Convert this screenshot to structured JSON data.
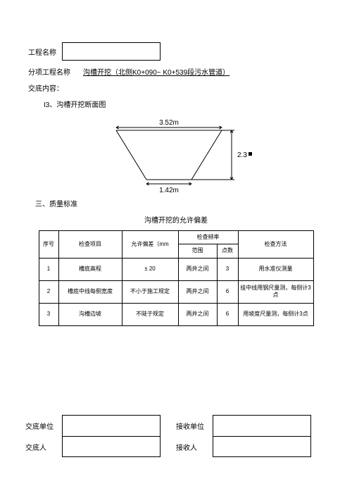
{
  "header": {
    "project_label": "工程名称",
    "sub_project_label": "分项工程名称",
    "sub_project_value": "沟槽开挖（北侧K0+090~ K0+539段污水管道）",
    "content_label": "交底内容：",
    "section_label": "I3、沟槽开挖断面图"
  },
  "diagram": {
    "top_width_label": "3.52m",
    "bottom_width_label": "1.42m",
    "height_label": "2.3",
    "height_unit": "m",
    "top_width": 150,
    "bottom_width": 64,
    "depth": 70,
    "stroke": "#000000",
    "stroke_width": 1,
    "font_size": 10
  },
  "quality": {
    "section_label": "三、质量标准",
    "table_title": "沟槽开挖的允许偏差",
    "columns": {
      "no": "序号",
      "item": "检查项目",
      "tol": "允许偏差（mm",
      "freq": "检查频率",
      "range": "范围",
      "points": "点数",
      "method": "检查方法"
    },
    "rows": [
      {
        "no": "1",
        "item": "槽底高程",
        "tol": "± 20",
        "range": "两井之间",
        "points": "3",
        "method": "用水准仪测量"
      },
      {
        "no": "2",
        "item": "槽底中线每侧宽度",
        "tol": "不小于施工规定",
        "range": "两井之间",
        "points": "6",
        "method": "挂中线用钢尺量测，每侧计3点"
      },
      {
        "no": "3",
        "item": "沟槽边坡",
        "tol": "不陡于规定",
        "range": "两井之间",
        "points": "6",
        "method": "用坡度尺量测，每侧计3点"
      }
    ],
    "col_widths": {
      "no": 28,
      "item": 90,
      "tol": 80,
      "range": 55,
      "points": 30,
      "method": 107
    }
  },
  "footer": {
    "send_unit_label": "交底单位",
    "recv_unit_label": "接收单位",
    "send_person_label": "交底人",
    "recv_person_label": "接收人"
  }
}
